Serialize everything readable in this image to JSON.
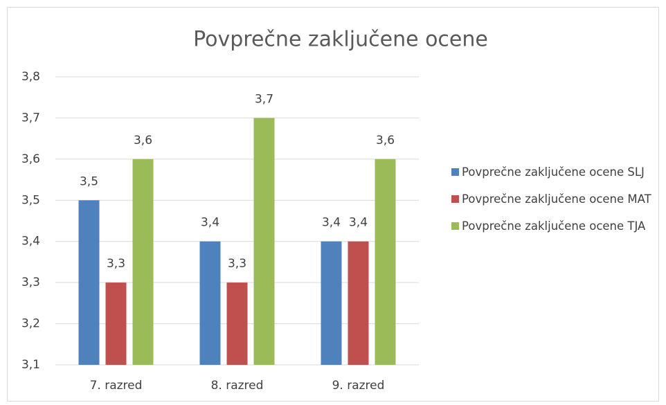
{
  "chart_data": {
    "type": "bar",
    "title": "Povprečne zaključene ocene",
    "categories": [
      "7. razred",
      "8. razred",
      "9. razred"
    ],
    "series": [
      {
        "name": "Povprečne zaključene ocene SLJ",
        "color": "#4f81bd",
        "values": [
          3.5,
          3.4,
          3.4
        ],
        "value_labels": [
          "3,5",
          "3,4",
          "3,4"
        ]
      },
      {
        "name": "Povprečne zaključene ocene MAT",
        "color": "#c0504d",
        "values": [
          3.3,
          3.3,
          3.4
        ],
        "value_labels": [
          "3,3",
          "3,3",
          "3,4"
        ]
      },
      {
        "name": "Povprečne zaključene ocene TJA",
        "color": "#9bbb59",
        "values": [
          3.6,
          3.7,
          3.6
        ],
        "value_labels": [
          "3,6",
          "3,7",
          "3,6"
        ]
      }
    ],
    "ylim": [
      3.1,
      3.8
    ],
    "yticks": [
      {
        "value": 3.1,
        "label": "3,1"
      },
      {
        "value": 3.2,
        "label": "3,2"
      },
      {
        "value": 3.3,
        "label": "3,3"
      },
      {
        "value": 3.4,
        "label": "3,4"
      },
      {
        "value": 3.5,
        "label": "3,5"
      },
      {
        "value": 3.6,
        "label": "3,6"
      },
      {
        "value": 3.7,
        "label": "3,7"
      },
      {
        "value": 3.8,
        "label": "3,8"
      }
    ],
    "grid": true,
    "legend": "right"
  }
}
